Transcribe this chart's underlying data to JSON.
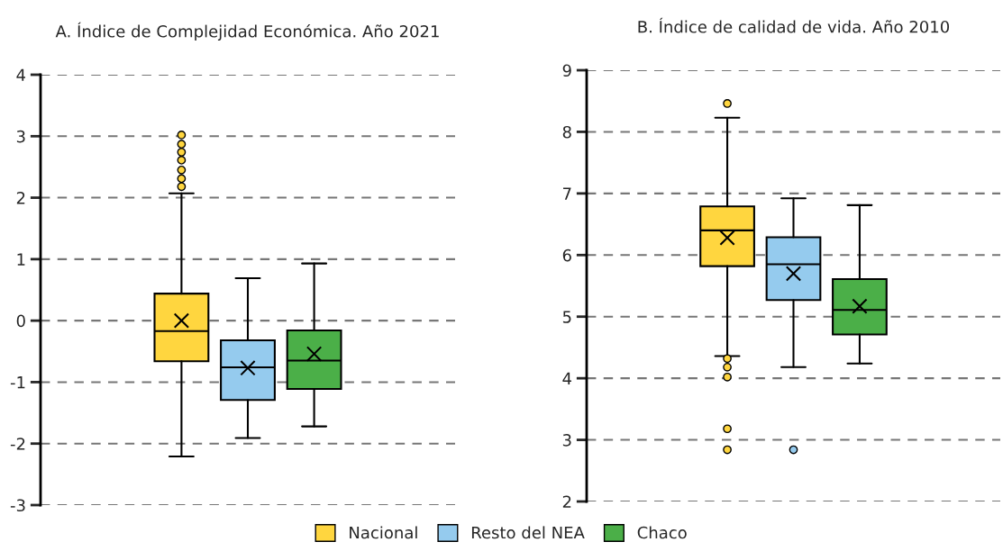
{
  "chart_data": [
    {
      "type": "box",
      "title": "A. Índice de Complejidad Económica. Año 2021",
      "categories": [
        null
      ],
      "ylim": [
        -3,
        4
      ],
      "yticks": [
        {
          "value": -3,
          "label": "-3"
        },
        {
          "value": -2,
          "label": "-2"
        },
        {
          "value": -1,
          "label": "-1"
        },
        0,
        1,
        2,
        3,
        4
      ],
      "grid": "y",
      "tick_labels": "y",
      "legend": "bottom",
      "marker": "cross",
      "series": [
        {
          "name": "Nacional",
          "color": "#ffd63f",
          "boxes": [
            {
              "low": -2.21,
              "q1": -0.66,
              "median": -0.17,
              "q3": 0.44,
              "high": 2.07,
              "mean": 0.0,
              "outliers": [
                2.18,
                2.31,
                2.45,
                2.61,
                2.74,
                2.87,
                3.02
              ]
            }
          ]
        },
        {
          "name": "Resto del NEA",
          "color": "#95cbee",
          "boxes": [
            {
              "low": -1.91,
              "q1": -1.29,
              "median": -0.76,
              "q3": -0.32,
              "high": 0.69,
              "mean": -0.77
            }
          ]
        },
        {
          "name": "Chaco",
          "color": "#4baf48",
          "boxes": [
            {
              "low": -1.72,
              "q1": -1.11,
              "median": -0.65,
              "q3": -0.16,
              "high": 0.93,
              "mean": -0.54
            }
          ]
        }
      ]
    },
    {
      "type": "box",
      "title": "B. Índice de calidad de vida. Año 2010",
      "categories": [
        null
      ],
      "ylim": [
        2,
        9
      ],
      "yticks": [
        2,
        3,
        4,
        5,
        6,
        7,
        8,
        9
      ],
      "grid": "y",
      "tick_labels": "y",
      "marker": "cross",
      "series": [
        {
          "color": "#ffd63f",
          "boxes": [
            {
              "low": 4.36,
              "q1": 5.82,
              "median": 6.4,
              "q3": 6.79,
              "high": 8.23,
              "mean": 6.28,
              "outliers": [
                2.84,
                3.18,
                4.02,
                4.18,
                4.32,
                8.46
              ]
            }
          ]
        },
        {
          "color": "#95cbee",
          "boxes": [
            {
              "low": 4.18,
              "q1": 5.27,
              "median": 5.85,
              "q3": 6.29,
              "high": 6.92,
              "mean": 5.7,
              "outliers": [
                2.84
              ]
            }
          ]
        },
        {
          "color": "#4baf48",
          "boxes": [
            {
              "low": 4.24,
              "q1": 4.71,
              "median": 5.11,
              "q3": 5.61,
              "high": 6.81,
              "mean": 5.17
            }
          ]
        }
      ]
    }
  ]
}
